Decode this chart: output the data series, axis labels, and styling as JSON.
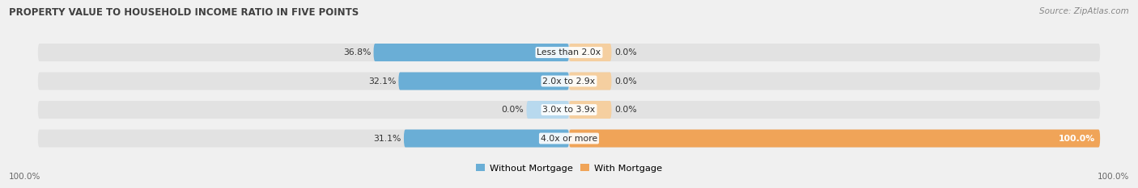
{
  "title": "PROPERTY VALUE TO HOUSEHOLD INCOME RATIO IN FIVE POINTS",
  "source": "Source: ZipAtlas.com",
  "categories": [
    "Less than 2.0x",
    "2.0x to 2.9x",
    "3.0x to 3.9x",
    "4.0x or more"
  ],
  "without_mortgage": [
    36.8,
    32.1,
    0.0,
    31.1
  ],
  "with_mortgage": [
    0.0,
    0.0,
    0.0,
    100.0
  ],
  "without_mortgage_color": "#6aaed6",
  "with_mortgage_color": "#f0a458",
  "without_mortgage_light": "#b8d9ee",
  "with_mortgage_light": "#f5cfa0",
  "bar_bg_color": "#e2e2e2",
  "title_color": "#404040",
  "label_color": "#555555",
  "legend_label_without": "Without Mortgage",
  "legend_label_with": "With Mortgage",
  "axis_label_left": "100.0%",
  "axis_label_right": "100.0%",
  "background_color": "#f0f0f0",
  "bar_bg_light": "#dcdcdc"
}
